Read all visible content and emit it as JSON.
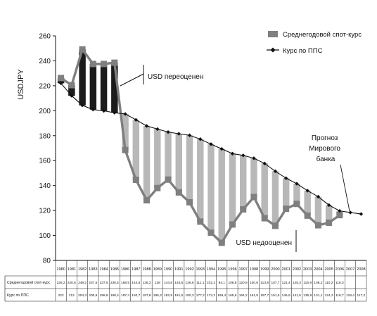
{
  "chart_data": {
    "type": "bar+line",
    "title": "",
    "ylabel": "USDJPY",
    "xlabel": "",
    "ylim": [
      80,
      260
    ],
    "yticks": [
      80,
      100,
      120,
      140,
      160,
      180,
      200,
      220,
      240,
      260
    ],
    "categories": [
      "1980",
      "1981",
      "1982",
      "1983",
      "1984",
      "1985",
      "1986",
      "1987",
      "1988",
      "1989",
      "1990",
      "1991",
      "1992",
      "1993",
      "1994",
      "1995",
      "1996",
      "1997",
      "1998",
      "1999",
      "2000",
      "2001",
      "2002",
      "2003",
      "2004",
      "2005",
      "2006",
      "2007",
      "2008"
    ],
    "series": [
      {
        "name": "Среднегодовой спот-курс",
        "values": [
          226.2,
          220.5,
          249.2,
          237.5,
          237.5,
          238.5,
          168.5,
          144.6,
          128.2,
          138.0,
          144.8,
          134.5,
          126.6,
          111.1,
          102.2,
          94.1,
          108.8,
          120.9,
          130.8,
          113.8,
          107.7,
          121.4,
          125.3,
          115.9,
          108.2,
          110.2,
          116.3,
          null,
          null
        ]
      },
      {
        "name": "Курс по ППС",
        "values": [
          222,
          212,
          204.3,
          200.9,
          199.9,
          198.4,
          197.4,
          192.7,
          187.8,
          185.3,
          182.9,
          181.5,
          180.3,
          177.2,
          173.2,
          169.4,
          165.6,
          164.2,
          161.9,
          157.7,
          151.5,
          145.9,
          141.5,
          135.9,
          131.1,
          124.3,
          119.7,
          118.4,
          117.2
        ]
      }
    ],
    "table_rows": [
      {
        "label": "Среднегодовой спот-курс",
        "values": [
          "226,2",
          "220,5",
          "249,2",
          "237,5",
          "237,5",
          "238,5",
          "168,5",
          "144,6",
          "128,2",
          "138",
          "144,8",
          "134,5",
          "126,6",
          "111,1",
          "102,2",
          "94,1",
          "108,8",
          "120,9",
          "130,8",
          "113,8",
          "107,7",
          "121,4",
          "125,3",
          "115,9",
          "108,2",
          "110,2",
          "116,3",
          "",
          ""
        ]
      },
      {
        "label": "Курс по ППС",
        "values": [
          "222",
          "212",
          "204,3",
          "200,9",
          "199,9",
          "198,4",
          "197,4",
          "192,7",
          "187,8",
          "185,3",
          "182,9",
          "181,5",
          "180,3",
          "177,2",
          "173,2",
          "169,4",
          "165,6",
          "164,2",
          "161,9",
          "157,7",
          "151,5",
          "145,9",
          "141,5",
          "135,9",
          "131,1",
          "124,3",
          "119,7",
          "118,4",
          "117,2"
        ]
      }
    ],
    "annotations": [
      "USD переоценен",
      "USD недооценен",
      "Прогноз Мирового банка"
    ],
    "legend_placement": "top-right",
    "colors": {
      "overvalued_bar": "#1c1c1c",
      "undervalued_bar": "#b8b8b8",
      "spot_line": "#7f7f7f",
      "ppp_line": "#111111"
    }
  }
}
